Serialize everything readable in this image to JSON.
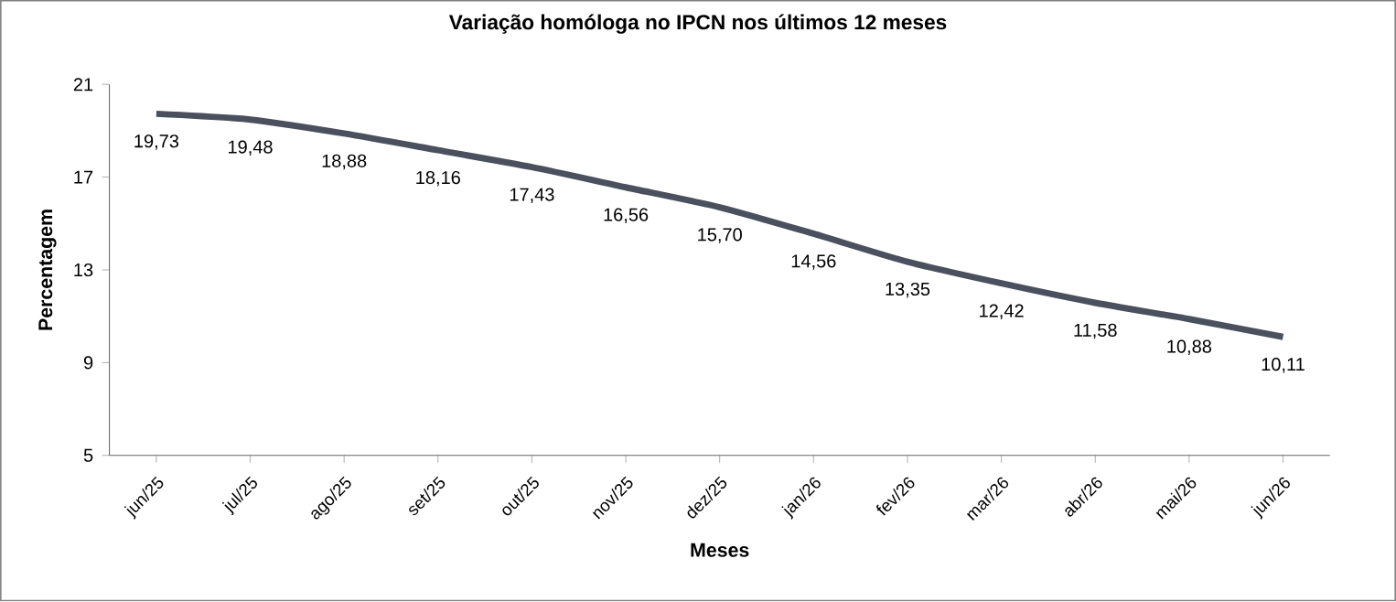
{
  "chart_data": {
    "type": "line",
    "title": "Variação homóloga no IPCN nos últimos 12 meses",
    "xlabel": "Meses",
    "ylabel": "Percentagem",
    "categories": [
      "jun/25",
      "jul/25",
      "ago/25",
      "set/25",
      "out/25",
      "nov/25",
      "dez/25",
      "jan/26",
      "fev/26",
      "mar/26",
      "abr/26",
      "mai/26",
      "jun/26"
    ],
    "series": [
      {
        "color": "#4a505e",
        "values": [
          19.73,
          19.48,
          18.88,
          18.16,
          17.43,
          16.56,
          15.7,
          14.56,
          13.35,
          12.42,
          11.58,
          10.88,
          10.11
        ],
        "value_labels": [
          "19,73",
          "19,48",
          "18,88",
          "18,16",
          "17,43",
          "16,56",
          "15,70",
          "14,56",
          "13,35",
          "12,42",
          "11,58",
          "10,88",
          "10,11"
        ]
      }
    ],
    "ylim": [
      5,
      21
    ],
    "yticks": [
      5,
      9,
      13,
      17,
      21
    ],
    "marker": "none",
    "line_style": "solid"
  }
}
